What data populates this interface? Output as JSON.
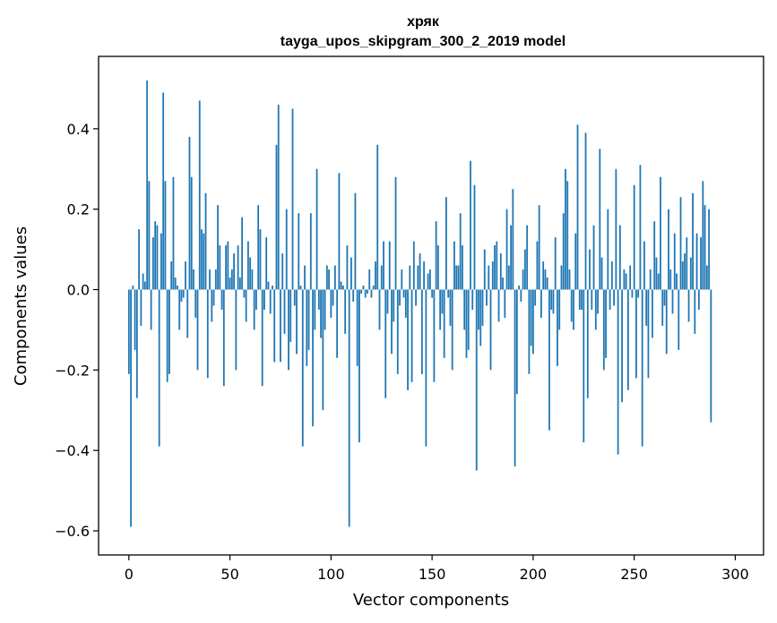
{
  "chart_data": {
    "type": "bar",
    "title": "хряк",
    "subtitle": "tayga_upos_skipgram_300_2_2019 model",
    "xlabel": "Vector components",
    "ylabel": "Components values",
    "xlim": [
      -15,
      314
    ],
    "ylim": [
      -0.66,
      0.58
    ],
    "xticks": [
      0,
      50,
      100,
      150,
      200,
      250,
      300
    ],
    "yticks": [
      -0.6,
      -0.4,
      -0.2,
      0.0,
      0.2,
      0.4
    ],
    "xtick_labels": [
      "0",
      "50",
      "100",
      "150",
      "200",
      "250",
      "300"
    ],
    "ytick_labels": [
      "−0.6",
      "−0.4",
      "−0.2",
      "0.0",
      "0.2",
      "0.4"
    ],
    "bar_color": "#1f77b4",
    "values": [
      -0.21,
      -0.59,
      0.01,
      -0.15,
      -0.27,
      0.15,
      -0.09,
      0.04,
      0.02,
      0.52,
      0.27,
      -0.1,
      0.13,
      0.17,
      0.16,
      -0.39,
      0.14,
      0.49,
      0.27,
      -0.23,
      -0.21,
      0.07,
      0.28,
      0.03,
      0.01,
      -0.1,
      -0.03,
      -0.02,
      0.07,
      -0.12,
      0.38,
      0.28,
      0.05,
      -0.07,
      -0.2,
      0.47,
      0.15,
      0.14,
      0.24,
      -0.22,
      0.05,
      -0.08,
      -0.04,
      0.05,
      0.21,
      0.11,
      -0.05,
      -0.24,
      0.11,
      0.12,
      0.03,
      0.05,
      0.09,
      -0.2,
      0.11,
      0.03,
      0.18,
      -0.02,
      -0.08,
      0.12,
      0.08,
      0.05,
      -0.1,
      -0.05,
      0.21,
      0.15,
      -0.24,
      -0.05,
      0.13,
      0.02,
      -0.06,
      0.01,
      -0.18,
      0.36,
      0.46,
      -0.18,
      0.09,
      -0.11,
      0.2,
      -0.2,
      -0.13,
      0.45,
      -0.04,
      -0.16,
      0.19,
      0.01,
      -0.39,
      0.06,
      -0.19,
      -0.15,
      0.19,
      -0.34,
      -0.1,
      0.3,
      -0.05,
      -0.12,
      -0.3,
      -0.1,
      0.06,
      0.05,
      -0.07,
      -0.04,
      0.06,
      -0.17,
      0.29,
      0.02,
      0.01,
      -0.11,
      0.11,
      -0.59,
      0.08,
      -0.03,
      0.24,
      -0.19,
      -0.38,
      -0.01,
      0.01,
      -0.02,
      -0.01,
      0.05,
      -0.02,
      0.01,
      0.07,
      0.36,
      -0.1,
      0.06,
      0.12,
      -0.27,
      -0.06,
      0.12,
      -0.16,
      -0.08,
      0.28,
      -0.21,
      -0.04,
      0.05,
      -0.02,
      -0.07,
      -0.25,
      0.06,
      -0.23,
      0.12,
      -0.04,
      0.06,
      0.09,
      -0.21,
      0.07,
      -0.39,
      0.04,
      0.05,
      -0.02,
      -0.23,
      0.17,
      0.11,
      -0.1,
      -0.06,
      -0.17,
      0.23,
      -0.02,
      -0.09,
      -0.2,
      0.12,
      0.06,
      0.06,
      0.19,
      0.11,
      -0.1,
      -0.17,
      -0.15,
      0.32,
      -0.05,
      0.26,
      -0.45,
      -0.1,
      -0.14,
      -0.09,
      0.1,
      -0.04,
      0.06,
      -0.2,
      0.07,
      0.11,
      0.12,
      -0.08,
      0.09,
      0.03,
      -0.07,
      0.2,
      0.06,
      0.16,
      0.25,
      -0.44,
      -0.26,
      0.01,
      -0.03,
      0.05,
      0.1,
      0.16,
      -0.21,
      -0.14,
      -0.16,
      -0.04,
      0.12,
      0.21,
      -0.07,
      0.07,
      0.05,
      0.03,
      -0.35,
      -0.05,
      -0.06,
      0.13,
      -0.19,
      -0.1,
      0.06,
      0.19,
      0.3,
      0.27,
      0.05,
      -0.08,
      -0.1,
      0.14,
      0.41,
      -0.05,
      -0.05,
      -0.38,
      0.39,
      -0.27,
      0.1,
      -0.05,
      0.16,
      -0.1,
      -0.06,
      0.35,
      0.08,
      -0.2,
      -0.17,
      0.2,
      -0.05,
      0.07,
      -0.04,
      0.3,
      -0.41,
      0.16,
      -0.28,
      0.05,
      0.04,
      -0.25,
      0.06,
      -0.02,
      0.26,
      -0.22,
      -0.02,
      0.31,
      -0.39,
      0.12,
      -0.09,
      -0.22,
      0.05,
      -0.12,
      0.17,
      0.08,
      0.04,
      0.28,
      -0.09,
      -0.04,
      -0.16,
      0.2,
      0.05,
      -0.06,
      0.14,
      0.04,
      -0.15,
      0.23,
      0.07,
      0.09,
      0.13,
      -0.08,
      0.08,
      0.24,
      -0.11,
      0.14,
      -0.05,
      0.13,
      0.27,
      0.21,
      0.06,
      0.2,
      -0.33
    ]
  }
}
